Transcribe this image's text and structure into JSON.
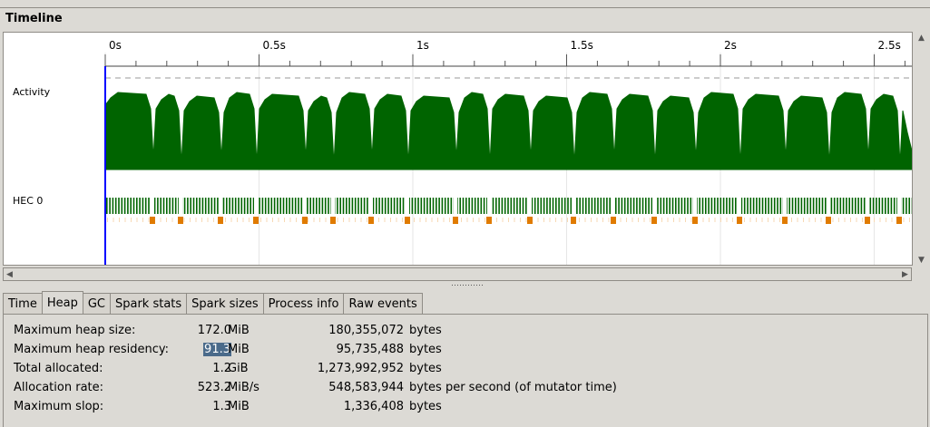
{
  "window": {
    "title": "Timeline"
  },
  "timeline": {
    "ticks": [
      "0s",
      "0.5s",
      "1s",
      "1.5s",
      "2s",
      "2.5s"
    ],
    "rows": [
      "Activity",
      "HEC 0"
    ],
    "colors": {
      "activity": "#006400",
      "gc": "#e07b00",
      "cursor": "#0000ff"
    }
  },
  "tabs": [
    {
      "label": "Time",
      "active": false
    },
    {
      "label": "Heap",
      "active": true
    },
    {
      "label": "GC",
      "active": false
    },
    {
      "label": "Spark stats",
      "active": false
    },
    {
      "label": "Spark sizes",
      "active": false
    },
    {
      "label": "Process info",
      "active": false
    },
    {
      "label": "Raw events",
      "active": false
    }
  ],
  "heap_stats": [
    {
      "label": "Maximum heap size:",
      "value": "172.0",
      "unit": "MiB",
      "bytes": "180,355,072",
      "bytes_unit": "bytes"
    },
    {
      "label": "Maximum heap residency:",
      "value": "91.3",
      "unit": "MiB",
      "bytes": "95,735,488",
      "bytes_unit": "bytes"
    },
    {
      "label": "Total allocated:",
      "value": "1.2",
      "unit": "GiB",
      "bytes": "1,273,992,952",
      "bytes_unit": "bytes"
    },
    {
      "label": "Allocation rate:",
      "value": "523.2",
      "unit": "MiB/s",
      "bytes": "548,583,944",
      "bytes_unit": "bytes per second (of mutator time)"
    },
    {
      "label": "Maximum slop:",
      "value": "1.3",
      "unit": "MiB",
      "bytes": "1,336,408",
      "bytes_unit": "bytes"
    }
  ]
}
